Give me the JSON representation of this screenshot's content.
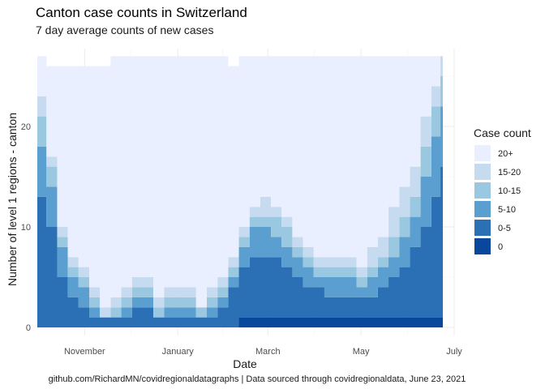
{
  "chart_data": {
    "type": "area",
    "stacked": true,
    "title": "Canton case counts in Switzerland",
    "subtitle": "7 day average counts of new cases",
    "xlabel": "Date",
    "ylabel": "Number of level 1 regions - canton",
    "caption": "github.com/RichardMN/covidregionaldatagraphs | Data sourced through covidregionaldata, June 23, 2021",
    "x_ticks": [
      "November",
      "January",
      "March",
      "May",
      "July"
    ],
    "x_tick_dates": [
      "2020-11-01",
      "2021-01-01",
      "2021-03-01",
      "2021-05-01",
      "2021-07-01"
    ],
    "xlim": [
      "2020-10-01",
      "2021-07-01"
    ],
    "y_ticks": [
      0,
      10,
      20
    ],
    "ylim": [
      0,
      27
    ],
    "grid": true,
    "legend_title": "Case count",
    "legend_position": "right",
    "total_regions": 27,
    "x": [
      "2020-10-01",
      "2020-10-07",
      "2020-10-14",
      "2020-10-21",
      "2020-10-28",
      "2020-11-04",
      "2020-11-11",
      "2020-11-18",
      "2020-11-25",
      "2020-12-02",
      "2020-12-09",
      "2020-12-16",
      "2020-12-23",
      "2020-12-30",
      "2021-01-06",
      "2021-01-13",
      "2021-01-20",
      "2021-01-27",
      "2021-02-03",
      "2021-02-10",
      "2021-02-17",
      "2021-02-24",
      "2021-03-03",
      "2021-03-10",
      "2021-03-17",
      "2021-03-24",
      "2021-03-31",
      "2021-04-07",
      "2021-04-14",
      "2021-04-21",
      "2021-04-28",
      "2021-05-05",
      "2021-05-12",
      "2021-05-19",
      "2021-05-26",
      "2021-06-02",
      "2021-06-09",
      "2021-06-16",
      "2021-06-22"
    ],
    "series": [
      {
        "name": "0",
        "color": "#08479c",
        "values": [
          0,
          0,
          0,
          0,
          0,
          0,
          0,
          0,
          0,
          0,
          0,
          0,
          0,
          0,
          0,
          0,
          0,
          0,
          0,
          1,
          1,
          1,
          1,
          1,
          1,
          1,
          1,
          1,
          1,
          1,
          1,
          1,
          1,
          1,
          1,
          1,
          1,
          1,
          1
        ]
      },
      {
        "name": "0-5",
        "color": "#2b70b5",
        "values": [
          13,
          10,
          5,
          3,
          2,
          1,
          1,
          1,
          1,
          2,
          2,
          1,
          1,
          1,
          1,
          1,
          1,
          2,
          4,
          5,
          6,
          6,
          6,
          5,
          4,
          3,
          3,
          2,
          2,
          2,
          2,
          2,
          3,
          4,
          5,
          7,
          9,
          12,
          15
        ]
      },
      {
        "name": "5-10",
        "color": "#5b9fd0",
        "values": [
          5,
          4,
          3,
          2,
          2,
          1,
          0,
          0,
          1,
          1,
          1,
          0,
          1,
          1,
          1,
          0,
          1,
          1,
          1,
          2,
          3,
          3,
          2,
          2,
          2,
          2,
          1,
          2,
          2,
          2,
          1,
          2,
          2,
          2,
          3,
          3,
          5,
          6,
          6
        ]
      },
      {
        "name": "10-15",
        "color": "#9ac8e0",
        "values": [
          3,
          2,
          1,
          1,
          1,
          1,
          0,
          1,
          1,
          1,
          1,
          1,
          1,
          1,
          1,
          1,
          1,
          1,
          1,
          1,
          1,
          1,
          2,
          2,
          1,
          1,
          1,
          1,
          1,
          1,
          1,
          1,
          1,
          2,
          2,
          2,
          3,
          3,
          3
        ]
      },
      {
        "name": "15-20",
        "color": "#c6dbef",
        "values": [
          2,
          1,
          1,
          1,
          1,
          1,
          1,
          1,
          1,
          1,
          1,
          1,
          1,
          1,
          1,
          0,
          1,
          1,
          1,
          1,
          1,
          2,
          1,
          1,
          1,
          1,
          1,
          1,
          1,
          1,
          1,
          2,
          2,
          3,
          3,
          3,
          3,
          2,
          2
        ]
      },
      {
        "name": "20+",
        "color": "#e9effe",
        "values": [
          4,
          9,
          16,
          19,
          20,
          22,
          24,
          24,
          23,
          22,
          22,
          24,
          23,
          23,
          23,
          25,
          23,
          22,
          19,
          17,
          15,
          14,
          15,
          16,
          18,
          19,
          20,
          20,
          20,
          20,
          21,
          19,
          18,
          15,
          13,
          11,
          6,
          3,
          0
        ]
      }
    ],
    "legend_order": [
      "20+",
      "15-20",
      "10-15",
      "5-10",
      "0-5",
      "0"
    ]
  }
}
